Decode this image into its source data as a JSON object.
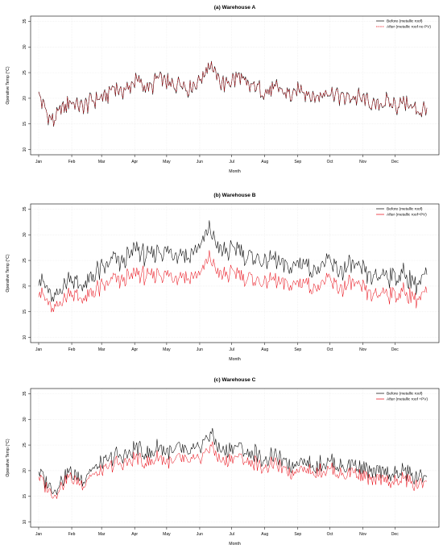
{
  "chart_data": [
    {
      "type": "line",
      "title": "(a) Warehouse A",
      "xlabel": "Month",
      "ylabel": "Operative Temp (°C)",
      "ylim": [
        9,
        36
      ],
      "yticks": [
        10,
        15,
        20,
        25,
        30,
        35
      ],
      "xticks": [
        "Jan",
        "Feb",
        "Mar",
        "Apr",
        "May",
        "Jun",
        "Jul",
        "Aug",
        "Sep",
        "Oct",
        "Nov",
        "Dec"
      ],
      "grid": true,
      "legend": "top-right",
      "series": [
        {
          "name": "Before (metallic roof)",
          "color": "#000000",
          "style": "solid",
          "x": [
            1,
            8,
            15,
            22,
            29,
            36,
            43,
            50,
            57,
            64,
            71,
            78,
            85,
            92,
            99,
            106,
            113,
            120,
            127,
            134,
            141,
            148,
            155,
            162,
            169,
            176,
            183,
            190,
            197,
            204,
            211,
            218,
            225,
            232,
            239,
            246,
            253,
            260,
            267,
            274,
            281,
            288,
            295,
            302,
            309,
            316,
            323,
            330,
            337,
            344,
            351,
            358,
            365
          ],
          "y": [
            20.5,
            17.5,
            15.5,
            17.5,
            19.5,
            18.5,
            18.0,
            19.5,
            20.0,
            20.5,
            22.0,
            21.5,
            22.0,
            23.5,
            22.5,
            22.0,
            24.0,
            23.0,
            22.5,
            23.5,
            22.0,
            23.0,
            24.5,
            27.0,
            23.5,
            22.5,
            23.5,
            24.0,
            22.0,
            22.5,
            21.0,
            21.5,
            22.0,
            21.0,
            20.5,
            22.0,
            21.0,
            20.0,
            21.0,
            21.5,
            20.5,
            20.0,
            20.5,
            20.0,
            19.5,
            18.5,
            19.5,
            19.0,
            18.5,
            19.5,
            18.0,
            17.5,
            18.5
          ]
        },
        {
          "name": "After (metallic roof no PV)",
          "color": "#e8000b",
          "style": "dashed",
          "x": [
            1,
            8,
            15,
            22,
            29,
            36,
            43,
            50,
            57,
            64,
            71,
            78,
            85,
            92,
            99,
            106,
            113,
            120,
            127,
            134,
            141,
            148,
            155,
            162,
            169,
            176,
            183,
            190,
            197,
            204,
            211,
            218,
            225,
            232,
            239,
            246,
            253,
            260,
            267,
            274,
            281,
            288,
            295,
            302,
            309,
            316,
            323,
            330,
            337,
            344,
            351,
            358,
            365
          ],
          "y": [
            20.5,
            17.5,
            15.5,
            17.5,
            19.5,
            18.5,
            18.0,
            19.5,
            20.0,
            20.5,
            22.0,
            21.5,
            22.0,
            23.5,
            22.5,
            22.0,
            24.0,
            23.0,
            22.5,
            23.5,
            22.0,
            23.0,
            24.5,
            27.0,
            23.5,
            22.5,
            23.5,
            24.0,
            22.0,
            22.5,
            21.0,
            21.5,
            22.0,
            21.0,
            20.5,
            22.0,
            21.0,
            20.0,
            21.0,
            21.5,
            20.5,
            20.0,
            20.5,
            20.0,
            19.5,
            18.5,
            19.5,
            19.0,
            18.5,
            19.5,
            18.0,
            17.5,
            18.5
          ]
        }
      ]
    },
    {
      "type": "line",
      "title": "(b) Warehouse B",
      "xlabel": "Month",
      "ylabel": "Operative Temp (°C)",
      "ylim": [
        9,
        36
      ],
      "yticks": [
        10,
        15,
        20,
        25,
        30,
        35
      ],
      "xticks": [
        "Jan",
        "Feb",
        "Mar",
        "Apr",
        "May",
        "Jun",
        "Jul",
        "Aug",
        "Sep",
        "Oct",
        "Nov",
        "Dec"
      ],
      "grid": true,
      "legend": "top-right",
      "series": [
        {
          "name": "Before (metallic roof)",
          "color": "#000000",
          "style": "solid",
          "x": [
            1,
            8,
            15,
            22,
            29,
            36,
            43,
            50,
            57,
            64,
            71,
            78,
            85,
            92,
            99,
            106,
            113,
            120,
            127,
            134,
            141,
            148,
            155,
            162,
            169,
            176,
            183,
            190,
            197,
            204,
            211,
            218,
            225,
            232,
            239,
            246,
            253,
            260,
            267,
            274,
            281,
            288,
            295,
            302,
            309,
            316,
            323,
            330,
            337,
            344,
            351,
            358,
            365
          ],
          "y": [
            22.0,
            19.5,
            17.0,
            19.5,
            22.0,
            20.5,
            19.5,
            21.5,
            23.0,
            23.5,
            25.5,
            24.5,
            25.5,
            27.5,
            26.0,
            25.5,
            27.5,
            26.5,
            26.0,
            27.0,
            25.5,
            27.0,
            28.5,
            31.0,
            27.5,
            26.5,
            27.0,
            27.5,
            25.5,
            26.0,
            24.5,
            25.0,
            25.0,
            24.0,
            23.5,
            25.0,
            24.0,
            23.0,
            24.0,
            24.5,
            23.5,
            23.0,
            24.0,
            23.0,
            22.5,
            21.5,
            22.5,
            22.0,
            21.5,
            22.5,
            21.0,
            20.5,
            22.0
          ]
        },
        {
          "name": "After (metallic roof+PV)",
          "color": "#e8000b",
          "style": "solid",
          "x": [
            1,
            8,
            15,
            22,
            29,
            36,
            43,
            50,
            57,
            64,
            71,
            78,
            85,
            92,
            99,
            106,
            113,
            120,
            127,
            134,
            141,
            148,
            155,
            162,
            169,
            176,
            183,
            190,
            197,
            204,
            211,
            218,
            225,
            232,
            239,
            246,
            253,
            260,
            267,
            274,
            281,
            288,
            295,
            302,
            309,
            316,
            323,
            330,
            337,
            344,
            351,
            358,
            365
          ],
          "y": [
            19.5,
            17.0,
            15.0,
            17.0,
            19.0,
            18.0,
            17.0,
            18.5,
            19.5,
            20.0,
            21.5,
            21.0,
            21.5,
            22.5,
            22.0,
            21.5,
            23.0,
            22.0,
            21.5,
            22.5,
            21.5,
            22.0,
            23.0,
            25.5,
            22.5,
            22.0,
            22.5,
            22.5,
            21.5,
            21.5,
            20.5,
            21.0,
            21.0,
            20.5,
            20.0,
            21.0,
            20.5,
            19.5,
            20.5,
            21.0,
            20.0,
            19.5,
            20.5,
            19.5,
            19.0,
            18.0,
            19.0,
            18.5,
            18.0,
            19.0,
            18.0,
            17.5,
            18.5
          ]
        }
      ]
    },
    {
      "type": "line",
      "title": "(c) Warehouse C",
      "xlabel": "Month",
      "ylabel": "Operative Temp (°C)",
      "ylim": [
        9,
        36
      ],
      "yticks": [
        10,
        15,
        20,
        25,
        30,
        35
      ],
      "xticks": [
        "Jan",
        "Feb",
        "Mar",
        "Apr",
        "May",
        "Jun",
        "Jul",
        "Aug",
        "Sep",
        "Oct",
        "Nov",
        "Dec"
      ],
      "grid": true,
      "legend": "top-right",
      "series": [
        {
          "name": "Before (metallic roof)",
          "color": "#000000",
          "style": "solid",
          "x": [
            1,
            8,
            15,
            22,
            29,
            36,
            43,
            50,
            57,
            64,
            71,
            78,
            85,
            92,
            99,
            106,
            113,
            120,
            127,
            134,
            141,
            148,
            155,
            162,
            169,
            176,
            183,
            190,
            197,
            204,
            211,
            218,
            225,
            232,
            239,
            246,
            253,
            260,
            267,
            274,
            281,
            288,
            295,
            302,
            309,
            316,
            323,
            330,
            337,
            344,
            351,
            358,
            365
          ],
          "y": [
            20.0,
            18.0,
            16.0,
            18.0,
            20.0,
            19.0,
            18.5,
            20.0,
            21.0,
            21.5,
            23.0,
            22.5,
            23.0,
            24.5,
            23.5,
            23.0,
            24.5,
            24.0,
            23.5,
            24.5,
            23.0,
            24.0,
            25.5,
            27.5,
            24.5,
            23.5,
            24.5,
            24.5,
            23.0,
            23.5,
            22.0,
            22.5,
            22.5,
            21.5,
            21.0,
            22.5,
            21.5,
            20.5,
            21.5,
            22.0,
            21.0,
            20.5,
            21.5,
            20.5,
            20.0,
            19.0,
            20.0,
            19.5,
            19.0,
            20.0,
            19.0,
            18.5,
            19.5
          ]
        },
        {
          "name": "After (metallic roof +PV)",
          "color": "#e8000b",
          "style": "solid",
          "x": [
            1,
            8,
            15,
            22,
            29,
            36,
            43,
            50,
            57,
            64,
            71,
            78,
            85,
            92,
            99,
            106,
            113,
            120,
            127,
            134,
            141,
            148,
            155,
            162,
            169,
            176,
            183,
            190,
            197,
            204,
            211,
            218,
            225,
            232,
            239,
            246,
            253,
            260,
            267,
            274,
            281,
            288,
            295,
            302,
            309,
            316,
            323,
            330,
            337,
            344,
            351,
            358,
            365
          ],
          "y": [
            19.0,
            17.0,
            15.0,
            17.0,
            19.0,
            18.0,
            17.5,
            19.0,
            19.5,
            20.0,
            21.5,
            21.0,
            21.5,
            22.5,
            21.5,
            21.5,
            22.5,
            22.0,
            21.5,
            22.5,
            21.5,
            22.0,
            23.0,
            25.0,
            22.5,
            21.5,
            22.5,
            22.5,
            21.5,
            21.5,
            20.5,
            21.0,
            21.0,
            20.0,
            19.5,
            21.0,
            20.0,
            19.5,
            20.0,
            20.5,
            19.5,
            19.0,
            20.0,
            19.0,
            18.5,
            17.5,
            18.5,
            18.0,
            17.5,
            18.5,
            17.5,
            17.0,
            18.5
          ]
        }
      ]
    }
  ]
}
